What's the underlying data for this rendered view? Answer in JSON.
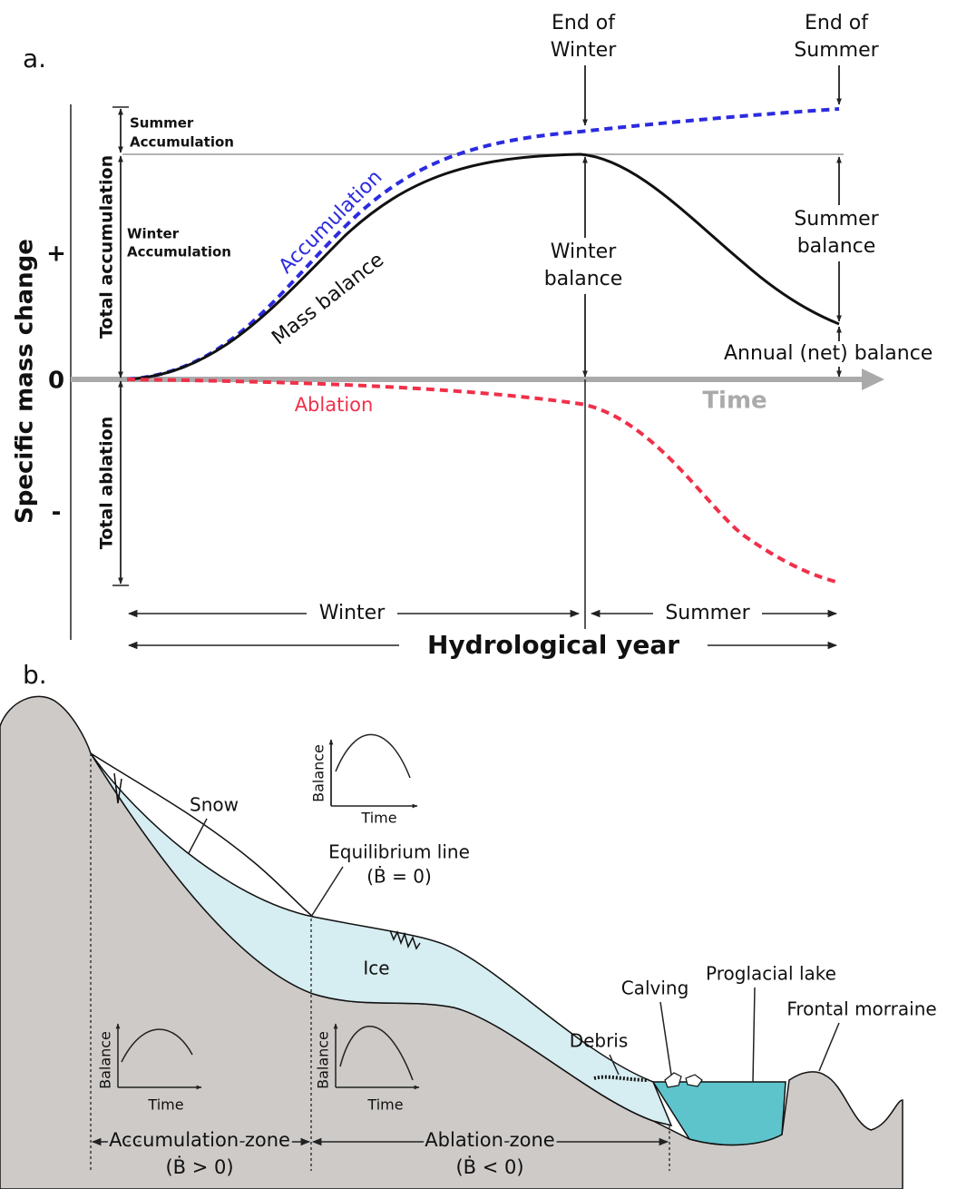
{
  "panel_a": {
    "label": "a.",
    "y_axis_title": "Specific mass change",
    "y_signs": [
      "+",
      "0",
      "-"
    ],
    "end_of_winter": [
      "End of",
      "Winter"
    ],
    "end_of_summer": [
      "End of",
      "Summer"
    ],
    "summer_accumulation": [
      "Summer",
      "Accumulation"
    ],
    "winter_accumulation": [
      "Winter",
      "Accumulation"
    ],
    "total_accumulation": "Total accumulation",
    "total_ablation": "Total ablation",
    "accumulation_curve": "Accumulation",
    "mass_balance_curve": "Mass balance",
    "ablation_curve": "Ablation",
    "winter_balance": [
      "Winter",
      "balance"
    ],
    "summer_balance": [
      "Summer",
      "balance"
    ],
    "annual_balance": "Annual (net) balance",
    "time_axis": "Time",
    "winter": "Winter",
    "summer": "Summer",
    "hydrological_year": "Hydrological year"
  },
  "panel_b": {
    "label": "b.",
    "snow": "Snow",
    "equilibrium_line": [
      "Equilibrium line",
      "(Ḃ = 0)"
    ],
    "ice": "Ice",
    "debris": "Debris",
    "calving": "Calving",
    "proglacial_lake": "Proglacial lake",
    "frontal_moraine": "Frontal morraine",
    "accumulation_zone": [
      "Accumulation zone",
      "(Ḃ > 0)"
    ],
    "ablation_zone": [
      "Ablation zone",
      "(Ḃ < 0)"
    ],
    "insets": [
      {
        "y_label": "Balance",
        "x_label": "Time"
      },
      {
        "y_label": "Balance",
        "x_label": "Time"
      },
      {
        "y_label": "Balance",
        "x_label": "Time"
      }
    ]
  }
}
